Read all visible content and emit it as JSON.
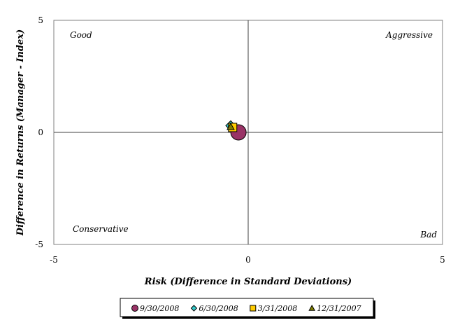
{
  "chart_data": {
    "type": "scatter",
    "xlabel": "Risk (Difference in Standard Deviations)",
    "ylabel": "Difference in Returns (Manager - Index)",
    "xlim": [
      -5,
      5
    ],
    "ylim": [
      -5,
      5
    ],
    "x_ticks": [
      "-5",
      "0",
      "5"
    ],
    "y_ticks": [
      "5",
      "0",
      "-5"
    ],
    "grid": false,
    "legend_position": "bottom",
    "quadrant_labels": {
      "top_left": "Good",
      "top_right": "Aggressive",
      "bottom_left": "Conservative",
      "bottom_right": "Bad"
    },
    "series": [
      {
        "name": "9/30/2008",
        "marker": "circle",
        "color": "#993366",
        "x": -0.25,
        "y": 0.0
      },
      {
        "name": "6/30/2008",
        "marker": "diamond",
        "color": "#33CCCC",
        "x": -0.45,
        "y": 0.3
      },
      {
        "name": "3/31/2008",
        "marker": "square",
        "color": "#FFCC00",
        "x": -0.4,
        "y": 0.22
      },
      {
        "name": "12/31/2007",
        "marker": "triangle",
        "color": "#808000",
        "x": -0.45,
        "y": 0.25
      }
    ]
  }
}
